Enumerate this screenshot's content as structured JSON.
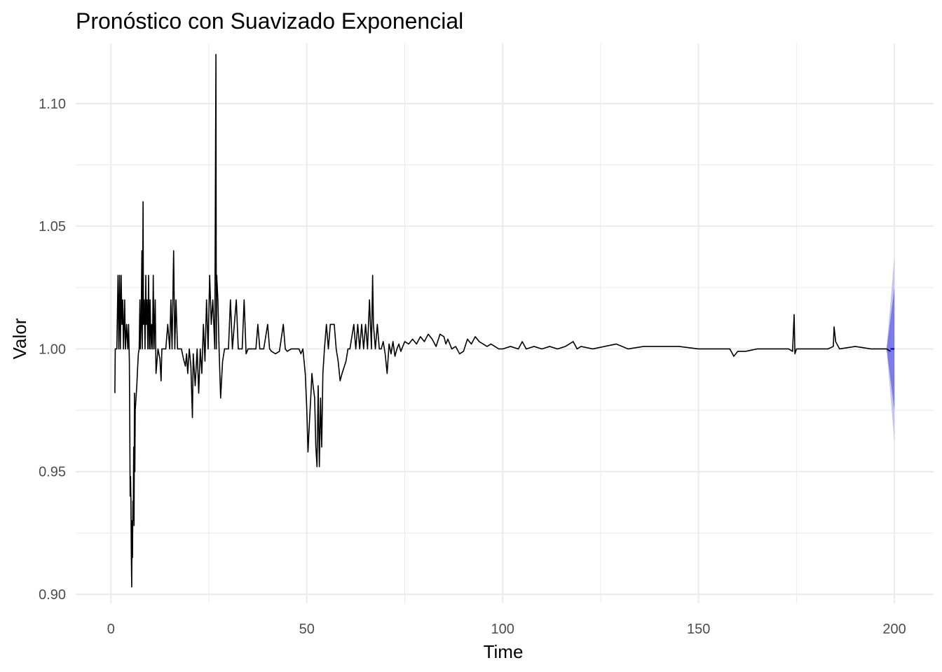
{
  "chart_data": {
    "type": "line",
    "title": "Pronóstico con Suavizado Exponencial",
    "xlabel": "Time",
    "ylabel": "Valor",
    "xlim": [
      -9,
      210
    ],
    "ylim": [
      0.8963,
      1.1245
    ],
    "x_ticks": [
      0,
      50,
      100,
      150,
      200
    ],
    "x_tick_labels": [
      "0",
      "50",
      "100",
      "150",
      "200"
    ],
    "y_ticks": [
      0.9,
      0.95,
      1.0,
      1.05,
      1.1
    ],
    "y_tick_labels": [
      "0.90",
      "0.95",
      "1.00",
      "1.05",
      "1.10"
    ],
    "grid": true,
    "colors": {
      "series": "#000000",
      "forecast": "#0000cc",
      "band_80": "#7b7bea",
      "band_95": "#c3c3f4",
      "grid": "#ebebeb"
    },
    "series": [
      {
        "values": [
          [
            1.0,
            0.982
          ],
          [
            1.1,
            1.0
          ],
          [
            1.5,
            1.0
          ],
          [
            1.8,
            1.03
          ],
          [
            2.0,
            1.0
          ],
          [
            2.2,
            1.03
          ],
          [
            2.4,
            1.0
          ],
          [
            2.6,
            1.03
          ],
          [
            2.8,
            1.01
          ],
          [
            3.0,
            1.02
          ],
          [
            3.2,
            1.0
          ],
          [
            3.5,
            1.02
          ],
          [
            3.7,
            1.0
          ],
          [
            4.0,
            1.01
          ],
          [
            4.3,
            1.0
          ],
          [
            4.5,
            1.01
          ],
          [
            4.7,
            0.995
          ],
          [
            4.8,
            0.97
          ],
          [
            4.9,
            0.94
          ],
          [
            5.0,
            0.948
          ],
          [
            5.1,
            0.938
          ],
          [
            5.2,
            0.916
          ],
          [
            5.3,
            0.903
          ],
          [
            5.4,
            0.93
          ],
          [
            5.5,
            0.915
          ],
          [
            5.6,
            0.938
          ],
          [
            5.7,
            0.93
          ],
          [
            5.8,
            0.96
          ],
          [
            5.9,
            0.928
          ],
          [
            6.0,
            0.982
          ],
          [
            6.1,
            0.95
          ],
          [
            6.2,
            0.975
          ],
          [
            6.4,
            0.98
          ],
          [
            6.6,
            0.985
          ],
          [
            6.8,
            0.992
          ],
          [
            7.0,
            0.998
          ],
          [
            7.2,
            1.0
          ],
          [
            7.4,
            1.02
          ],
          [
            7.5,
            1.0
          ],
          [
            7.7,
            1.01
          ],
          [
            7.9,
            1.04
          ],
          [
            8.0,
            1.0
          ],
          [
            8.2,
            1.06
          ],
          [
            8.3,
            1.01
          ],
          [
            8.5,
            1.02
          ],
          [
            8.7,
            1.0
          ],
          [
            8.9,
            1.03
          ],
          [
            9.0,
            1.01
          ],
          [
            9.2,
            1.02
          ],
          [
            9.4,
            1.0
          ],
          [
            9.6,
            1.03
          ],
          [
            9.8,
            1.0
          ],
          [
            10.0,
            1.02
          ],
          [
            10.2,
            1.0
          ],
          [
            10.4,
            1.01
          ],
          [
            10.6,
            1.0
          ],
          [
            10.8,
            1.03
          ],
          [
            11.0,
            1.0
          ],
          [
            11.3,
            1.02
          ],
          [
            11.5,
            0.99
          ],
          [
            12.0,
            1.0
          ],
          [
            12.5,
            0.996
          ],
          [
            12.8,
            0.987
          ],
          [
            13.0,
            1.0
          ],
          [
            14.0,
            1.0
          ],
          [
            14.5,
            1.01
          ],
          [
            15.0,
            1.0
          ],
          [
            15.3,
            1.02
          ],
          [
            15.6,
            1.0
          ],
          [
            16.0,
            1.04
          ],
          [
            16.3,
            1.0
          ],
          [
            16.6,
            1.02
          ],
          [
            17.0,
            1.0
          ],
          [
            18.0,
            1.0
          ],
          [
            18.5,
            0.996
          ],
          [
            19.0,
            0.993
          ],
          [
            19.3,
            0.998
          ],
          [
            19.6,
            0.99
          ],
          [
            20.0,
            1.0
          ],
          [
            20.4,
            0.993
          ],
          [
            20.8,
            0.972
          ],
          [
            21.0,
            0.998
          ],
          [
            21.5,
            0.985
          ],
          [
            22.0,
            1.0
          ],
          [
            22.4,
            0.982
          ],
          [
            22.8,
            1.0
          ],
          [
            23.2,
            0.99
          ],
          [
            23.6,
            1.01
          ],
          [
            24.0,
            0.995
          ],
          [
            24.4,
            1.02
          ],
          [
            24.8,
            1.0
          ],
          [
            25.2,
            1.03
          ],
          [
            25.6,
            1.01
          ],
          [
            26.0,
            1.02
          ],
          [
            26.5,
            1.0
          ],
          [
            26.8,
            1.12
          ],
          [
            26.9,
            1.0
          ],
          [
            27.0,
            1.03
          ],
          [
            27.3,
            1.02
          ],
          [
            27.6,
            1.0
          ],
          [
            28.0,
            0.98
          ],
          [
            28.5,
            0.995
          ],
          [
            29.0,
            1.0
          ],
          [
            30.0,
            1.0
          ],
          [
            30.5,
            1.02
          ],
          [
            31.0,
            1.0
          ],
          [
            32.0,
            1.02
          ],
          [
            32.5,
            1.0
          ],
          [
            33.5,
            1.0
          ],
          [
            34.0,
            1.02
          ],
          [
            34.5,
            0.998
          ],
          [
            35.0,
            1.0
          ],
          [
            36.0,
            1.0
          ],
          [
            37.0,
            1.0
          ],
          [
            37.5,
            1.01
          ],
          [
            38.0,
            1.0
          ],
          [
            39.0,
            1.0
          ],
          [
            40.0,
            1.01
          ],
          [
            40.5,
            1.0
          ],
          [
            41.0,
            0.999
          ],
          [
            42.0,
            0.998
          ],
          [
            43.0,
            0.999
          ],
          [
            44.0,
            1.01
          ],
          [
            44.5,
            1.0
          ],
          [
            45.0,
            0.999
          ],
          [
            46.0,
            1.0
          ],
          [
            47.0,
            1.0
          ],
          [
            48.0,
            1.0
          ],
          [
            48.5,
            0.998
          ],
          [
            49.0,
            1.0
          ],
          [
            49.3,
            0.995
          ],
          [
            49.6,
            0.99
          ],
          [
            50.0,
            0.975
          ],
          [
            50.3,
            0.958
          ],
          [
            50.6,
            0.968
          ],
          [
            51.0,
            0.98
          ],
          [
            51.3,
            0.99
          ],
          [
            51.6,
            0.985
          ],
          [
            52.0,
            0.98
          ],
          [
            52.3,
            0.96
          ],
          [
            52.6,
            0.952
          ],
          [
            52.9,
            0.985
          ],
          [
            53.2,
            0.952
          ],
          [
            53.5,
            0.98
          ],
          [
            53.8,
            0.96
          ],
          [
            54.1,
            0.99
          ],
          [
            54.5,
            1.0
          ],
          [
            55.0,
            1.01
          ],
          [
            55.5,
            1.0
          ],
          [
            56.0,
            1.01
          ],
          [
            57.0,
            1.01
          ],
          [
            57.5,
            1.0
          ],
          [
            58.0,
            0.995
          ],
          [
            58.5,
            0.987
          ],
          [
            59.0,
            0.99
          ],
          [
            60.0,
            0.995
          ],
          [
            60.5,
            1.0
          ],
          [
            61.0,
            1.0
          ],
          [
            62.0,
            1.01
          ],
          [
            62.5,
            1.0
          ],
          [
            63.0,
            1.01
          ],
          [
            63.5,
            1.0
          ],
          [
            64.0,
            1.01
          ],
          [
            64.5,
            1.0
          ],
          [
            65.0,
            1.01
          ],
          [
            65.5,
            1.0
          ],
          [
            66.0,
            1.02
          ],
          [
            66.5,
            1.0
          ],
          [
            66.8,
            1.03
          ],
          [
            67.0,
            1.01
          ],
          [
            67.5,
            1.0
          ],
          [
            68.0,
            1.01
          ],
          [
            68.5,
            1.0
          ],
          [
            69.0,
            1.0
          ],
          [
            69.5,
            1.003
          ],
          [
            70.0,
            0.998
          ],
          [
            70.5,
            0.99
          ],
          [
            71.0,
            1.002
          ],
          [
            71.5,
            0.998
          ],
          [
            72.0,
            1.003
          ],
          [
            72.5,
            0.997
          ],
          [
            73.0,
            1.0
          ],
          [
            73.5,
            1.002
          ],
          [
            74.0,
            0.999
          ],
          [
            75.0,
            1.003
          ],
          [
            76.0,
            1.002
          ],
          [
            77.0,
            1.004
          ],
          [
            78.0,
            1.002
          ],
          [
            79.0,
            1.005
          ],
          [
            80.0,
            1.003
          ],
          [
            81.0,
            1.006
          ],
          [
            82.0,
            1.004
          ],
          [
            83.0,
            1.001
          ],
          [
            84.0,
            1.006
          ],
          [
            85.0,
            1.005
          ],
          [
            85.5,
            1.002
          ],
          [
            86.0,
            1.004
          ],
          [
            87.0,
            1.0
          ],
          [
            88.0,
            1.001
          ],
          [
            89.0,
            0.998
          ],
          [
            90.0,
            0.999
          ],
          [
            91.0,
            1.004
          ],
          [
            92.0,
            1.002
          ],
          [
            93.0,
            1.005
          ],
          [
            94.0,
            1.003
          ],
          [
            95.0,
            1.002
          ],
          [
            96.0,
            1.001
          ],
          [
            97.0,
            1.002
          ],
          [
            98.0,
            1.001
          ],
          [
            99.0,
            1.0
          ],
          [
            100.0,
            1.0
          ],
          [
            102.0,
            1.001
          ],
          [
            104.0,
            1.0
          ],
          [
            105.0,
            1.003
          ],
          [
            106.0,
            1.0
          ],
          [
            108.0,
            1.001
          ],
          [
            110.0,
            1.0
          ],
          [
            112.0,
            1.001
          ],
          [
            114.0,
            1.0
          ],
          [
            116.0,
            1.001
          ],
          [
            118.0,
            1.003
          ],
          [
            119.0,
            1.0
          ],
          [
            120.0,
            1.001
          ],
          [
            123.0,
            1.0
          ],
          [
            126.0,
            1.001
          ],
          [
            129.0,
            1.002
          ],
          [
            132.0,
            1.0
          ],
          [
            136.0,
            1.001
          ],
          [
            140.0,
            1.001
          ],
          [
            145.0,
            1.001
          ],
          [
            150.0,
            1.0
          ],
          [
            155.0,
            1.0
          ],
          [
            158.0,
            1.0
          ],
          [
            159.0,
            0.997
          ],
          [
            160.0,
            0.999
          ],
          [
            162.0,
            0.999
          ],
          [
            165.0,
            1.0
          ],
          [
            170.0,
            1.0
          ],
          [
            173.0,
            1.0
          ],
          [
            174.0,
            0.999
          ],
          [
            174.4,
            1.014
          ],
          [
            174.6,
            0.998
          ],
          [
            175.0,
            1.0
          ],
          [
            180.0,
            1.0
          ],
          [
            183.0,
            1.0
          ],
          [
            184.4,
            1.001
          ],
          [
            184.6,
            1.009
          ],
          [
            185.0,
            1.003
          ],
          [
            186.0,
            1.0
          ],
          [
            190.0,
            1.001
          ],
          [
            194.0,
            1.0
          ],
          [
            198.0,
            1.0
          ],
          [
            199.0,
            0.999
          ]
        ]
      },
      {
        "values": [
          [
            199.0,
            1.0
          ],
          [
            200.0,
            1.0
          ]
        ]
      }
    ],
    "forecast_band_80": [
      [
        198.0,
        1.0,
        1.0
      ],
      [
        200.0,
        0.975,
        1.025
      ]
    ],
    "forecast_band_95": [
      [
        198.0,
        1.0,
        1.0
      ],
      [
        200.0,
        0.962,
        1.038
      ]
    ]
  }
}
